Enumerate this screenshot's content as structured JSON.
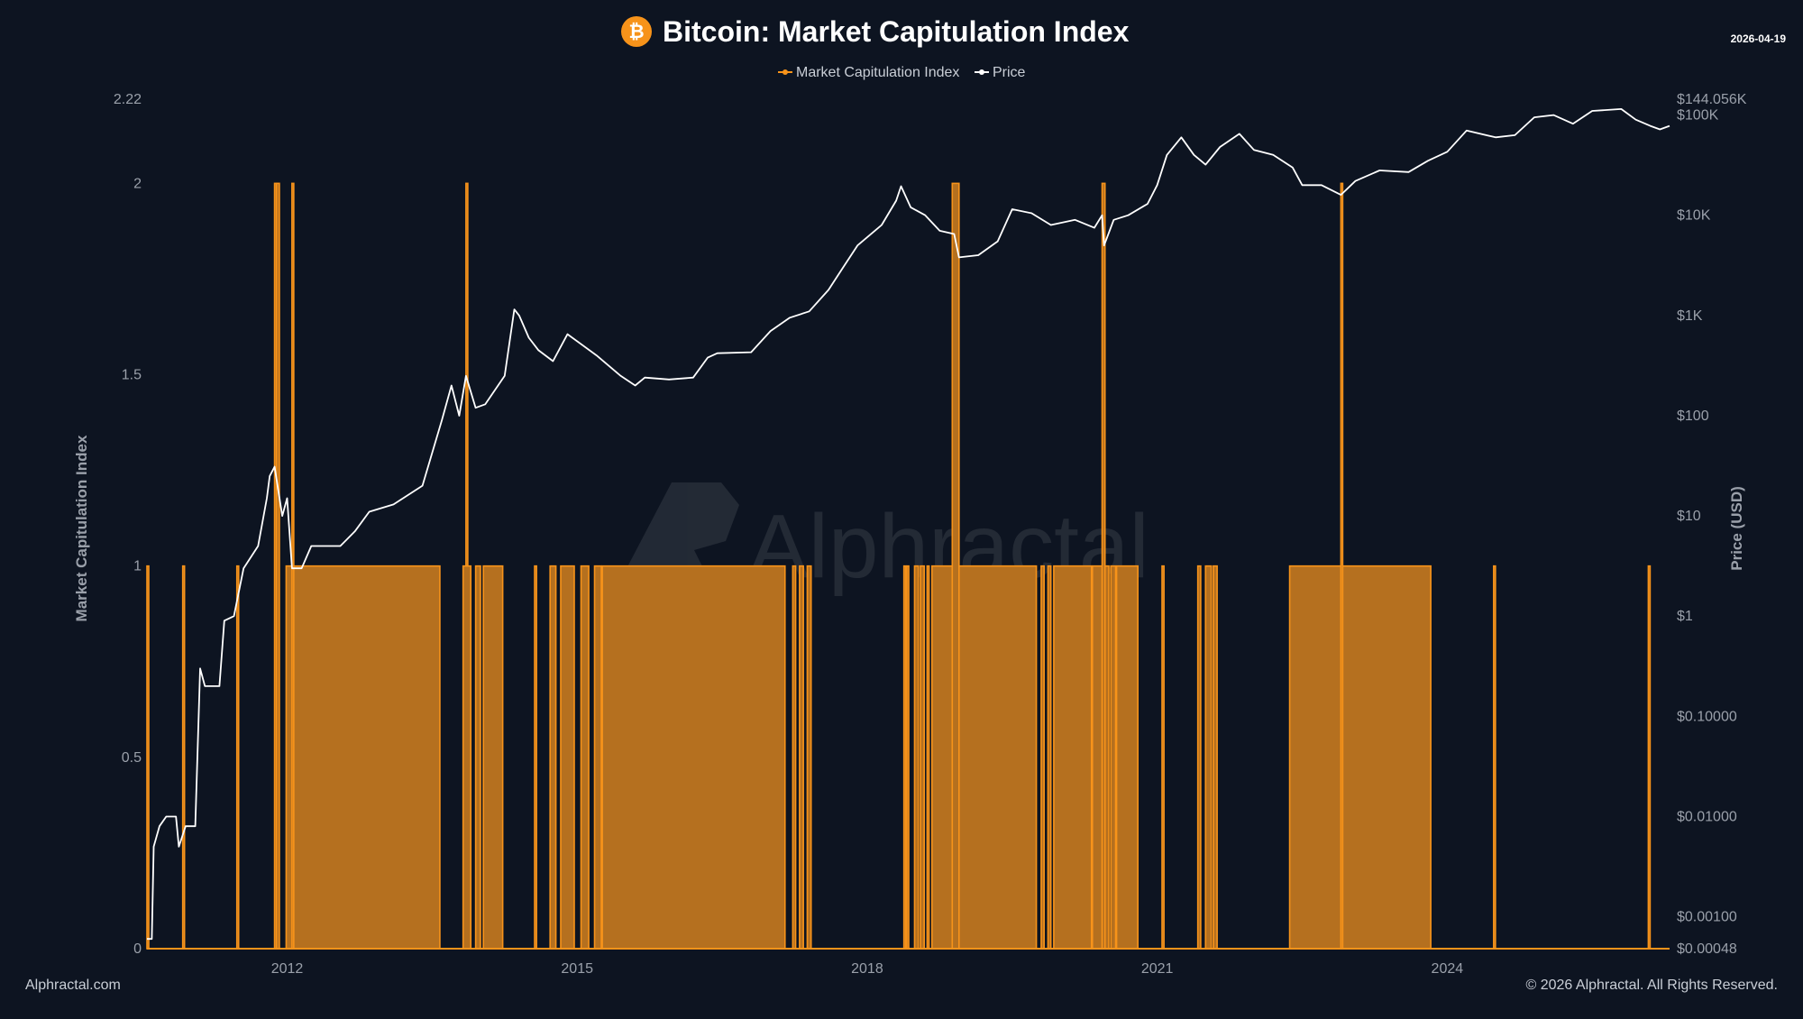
{
  "header": {
    "title": "Bitcoin: Market Capitulation Index",
    "date": "2026-04-19",
    "logo_icon": "bitcoin-icon"
  },
  "legend": {
    "items": [
      {
        "label": "Market Capitulation Index",
        "color": "#f7931a"
      },
      {
        "label": "Price",
        "color": "#ffffff"
      }
    ]
  },
  "footer": {
    "left": "Alphractal.com",
    "right": "© 2026 Alphractal. All Rights Reserved."
  },
  "watermark": "Alphractal",
  "colors": {
    "background": "#0d1421",
    "accent": "#f7931a",
    "fill": "#b5701f",
    "price": "#ffffff",
    "axis_text": "#9aa0aa"
  },
  "chart_data": {
    "type": "line",
    "ylabel": "Market Capitulation Index",
    "ylabel_right": "Price (USD)",
    "y_ticks": [
      "0",
      "0.5",
      "1",
      "1.5",
      "2",
      "2.22"
    ],
    "y_tick_values": [
      0,
      0.5,
      1,
      1.5,
      2,
      2.22
    ],
    "ylim": [
      0,
      2.22
    ],
    "y2_scale": "log",
    "y2_ticks": [
      "$0.00048",
      "$0.00100",
      "$0.01000",
      "$0.10000",
      "$1",
      "$10",
      "$100",
      "$1K",
      "$10K",
      "$100K",
      "$144.056K"
    ],
    "y2_tick_values": [
      0.00048,
      0.001,
      0.01,
      0.1,
      1,
      10,
      100,
      1000,
      10000,
      100000,
      144056
    ],
    "y2lim": [
      0.00048,
      144056
    ],
    "x_ticks": [
      "2012",
      "2015",
      "2018",
      "2021",
      "2024"
    ],
    "x_tick_values": [
      2012.0,
      2015.0,
      2018.0,
      2021.0,
      2024.0
    ],
    "xlim": [
      2010.55,
      2026.3
    ],
    "series": [
      {
        "name": "Market Capitulation Index",
        "color": "#f7931a",
        "style": "step-area",
        "segments": [
          {
            "start": 2010.55,
            "end": 2010.56,
            "value": 1
          },
          {
            "start": 2010.92,
            "end": 2010.93,
            "value": 1
          },
          {
            "start": 2011.48,
            "end": 2011.49,
            "value": 1
          },
          {
            "start": 2011.99,
            "end": 2013.58,
            "value": 1
          },
          {
            "start": 2011.87,
            "end": 2011.89,
            "value": 2
          },
          {
            "start": 2011.89,
            "end": 2011.92,
            "value": 2
          },
          {
            "start": 2012.05,
            "end": 2012.06,
            "value": 2
          },
          {
            "start": 2013.85,
            "end": 2013.86,
            "value": 2
          },
          {
            "start": 2013.82,
            "end": 2013.9,
            "value": 1
          },
          {
            "start": 2013.95,
            "end": 2014.0,
            "value": 1
          },
          {
            "start": 2014.03,
            "end": 2014.23,
            "value": 1
          },
          {
            "start": 2014.56,
            "end": 2014.58,
            "value": 1
          },
          {
            "start": 2014.72,
            "end": 2014.78,
            "value": 1
          },
          {
            "start": 2014.83,
            "end": 2014.97,
            "value": 1
          },
          {
            "start": 2015.04,
            "end": 2015.12,
            "value": 1
          },
          {
            "start": 2015.18,
            "end": 2015.25,
            "value": 1
          },
          {
            "start": 2015.26,
            "end": 2017.15,
            "value": 1
          },
          {
            "start": 2017.23,
            "end": 2017.26,
            "value": 1
          },
          {
            "start": 2017.3,
            "end": 2017.34,
            "value": 1
          },
          {
            "start": 2017.38,
            "end": 2017.42,
            "value": 1
          },
          {
            "start": 2018.38,
            "end": 2018.39,
            "value": 1
          },
          {
            "start": 2018.41,
            "end": 2018.43,
            "value": 1
          },
          {
            "start": 2018.49,
            "end": 2018.53,
            "value": 1
          },
          {
            "start": 2018.55,
            "end": 2018.59,
            "value": 1
          },
          {
            "start": 2018.62,
            "end": 2018.64,
            "value": 1
          },
          {
            "start": 2018.67,
            "end": 2019.75,
            "value": 1
          },
          {
            "start": 2018.88,
            "end": 2018.95,
            "value": 2
          },
          {
            "start": 2019.8,
            "end": 2019.83,
            "value": 1
          },
          {
            "start": 2019.87,
            "end": 2019.9,
            "value": 1
          },
          {
            "start": 2019.93,
            "end": 2020.32,
            "value": 1
          },
          {
            "start": 2020.33,
            "end": 2020.5,
            "value": 1
          },
          {
            "start": 2020.43,
            "end": 2020.46,
            "value": 2
          },
          {
            "start": 2020.52,
            "end": 2020.57,
            "value": 1
          },
          {
            "start": 2020.58,
            "end": 2020.8,
            "value": 1
          },
          {
            "start": 2021.05,
            "end": 2021.07,
            "value": 1
          },
          {
            "start": 2021.42,
            "end": 2021.45,
            "value": 1
          },
          {
            "start": 2021.5,
            "end": 2021.56,
            "value": 1
          },
          {
            "start": 2021.58,
            "end": 2021.62,
            "value": 1
          },
          {
            "start": 2022.37,
            "end": 2023.83,
            "value": 1
          },
          {
            "start": 2022.9,
            "end": 2022.91,
            "value": 2
          },
          {
            "start": 2024.48,
            "end": 2024.49,
            "value": 1
          },
          {
            "start": 2026.08,
            "end": 2026.09,
            "value": 1
          }
        ]
      },
      {
        "name": "Price",
        "color": "#ffffff",
        "style": "line",
        "points": [
          {
            "x": 2010.55,
            "y": 0.0006
          },
          {
            "x": 2010.6,
            "y": 0.0006
          },
          {
            "x": 2010.62,
            "y": 0.005
          },
          {
            "x": 2010.68,
            "y": 0.008
          },
          {
            "x": 2010.75,
            "y": 0.01
          },
          {
            "x": 2010.85,
            "y": 0.01
          },
          {
            "x": 2010.88,
            "y": 0.005
          },
          {
            "x": 2010.95,
            "y": 0.008
          },
          {
            "x": 2011.05,
            "y": 0.008
          },
          {
            "x": 2011.1,
            "y": 0.3
          },
          {
            "x": 2011.15,
            "y": 0.2
          },
          {
            "x": 2011.3,
            "y": 0.2
          },
          {
            "x": 2011.35,
            "y": 0.9
          },
          {
            "x": 2011.45,
            "y": 1.0
          },
          {
            "x": 2011.55,
            "y": 3
          },
          {
            "x": 2011.7,
            "y": 5
          },
          {
            "x": 2011.79,
            "y": 15
          },
          {
            "x": 2011.82,
            "y": 25
          },
          {
            "x": 2011.87,
            "y": 31
          },
          {
            "x": 2011.95,
            "y": 10
          },
          {
            "x": 2012.0,
            "y": 15
          },
          {
            "x": 2012.05,
            "y": 3
          },
          {
            "x": 2012.15,
            "y": 3
          },
          {
            "x": 2012.25,
            "y": 5
          },
          {
            "x": 2012.4,
            "y": 5
          },
          {
            "x": 2012.55,
            "y": 5
          },
          {
            "x": 2012.7,
            "y": 7
          },
          {
            "x": 2012.85,
            "y": 11
          },
          {
            "x": 2013.1,
            "y": 13
          },
          {
            "x": 2013.4,
            "y": 20
          },
          {
            "x": 2013.6,
            "y": 90
          },
          {
            "x": 2013.7,
            "y": 200
          },
          {
            "x": 2013.78,
            "y": 100
          },
          {
            "x": 2013.85,
            "y": 250
          },
          {
            "x": 2013.95,
            "y": 120
          },
          {
            "x": 2014.05,
            "y": 130
          },
          {
            "x": 2014.25,
            "y": 250
          },
          {
            "x": 2014.35,
            "y": 1150
          },
          {
            "x": 2014.4,
            "y": 1000
          },
          {
            "x": 2014.5,
            "y": 600
          },
          {
            "x": 2014.6,
            "y": 450
          },
          {
            "x": 2014.75,
            "y": 350
          },
          {
            "x": 2014.9,
            "y": 650
          },
          {
            "x": 2015.2,
            "y": 400
          },
          {
            "x": 2015.45,
            "y": 250
          },
          {
            "x": 2015.6,
            "y": 200
          },
          {
            "x": 2015.7,
            "y": 240
          },
          {
            "x": 2015.95,
            "y": 230
          },
          {
            "x": 2016.2,
            "y": 240
          },
          {
            "x": 2016.35,
            "y": 380
          },
          {
            "x": 2016.45,
            "y": 420
          },
          {
            "x": 2016.8,
            "y": 430
          },
          {
            "x": 2017.0,
            "y": 700
          },
          {
            "x": 2017.2,
            "y": 950
          },
          {
            "x": 2017.4,
            "y": 1100
          },
          {
            "x": 2017.6,
            "y": 1800
          },
          {
            "x": 2017.75,
            "y": 3000
          },
          {
            "x": 2017.9,
            "y": 5000
          },
          {
            "x": 2018.15,
            "y": 8000
          },
          {
            "x": 2018.3,
            "y": 14000
          },
          {
            "x": 2018.35,
            "y": 19500
          },
          {
            "x": 2018.45,
            "y": 12000
          },
          {
            "x": 2018.6,
            "y": 10000
          },
          {
            "x": 2018.75,
            "y": 7000
          },
          {
            "x": 2018.9,
            "y": 6500
          },
          {
            "x": 2018.95,
            "y": 3800
          },
          {
            "x": 2019.15,
            "y": 4000
          },
          {
            "x": 2019.35,
            "y": 5500
          },
          {
            "x": 2019.5,
            "y": 11500
          },
          {
            "x": 2019.7,
            "y": 10500
          },
          {
            "x": 2019.9,
            "y": 8000
          },
          {
            "x": 2020.15,
            "y": 9000
          },
          {
            "x": 2020.35,
            "y": 7500
          },
          {
            "x": 2020.43,
            "y": 10000
          },
          {
            "x": 2020.45,
            "y": 5000
          },
          {
            "x": 2020.55,
            "y": 9000
          },
          {
            "x": 2020.7,
            "y": 10000
          },
          {
            "x": 2020.9,
            "y": 13000
          },
          {
            "x": 2021.0,
            "y": 20000
          },
          {
            "x": 2021.1,
            "y": 40000
          },
          {
            "x": 2021.25,
            "y": 60000
          },
          {
            "x": 2021.38,
            "y": 40000
          },
          {
            "x": 2021.5,
            "y": 32000
          },
          {
            "x": 2021.65,
            "y": 48000
          },
          {
            "x": 2021.85,
            "y": 65000
          },
          {
            "x": 2022.0,
            "y": 45000
          },
          {
            "x": 2022.2,
            "y": 40000
          },
          {
            "x": 2022.4,
            "y": 30000
          },
          {
            "x": 2022.5,
            "y": 20000
          },
          {
            "x": 2022.7,
            "y": 20000
          },
          {
            "x": 2022.9,
            "y": 16000
          },
          {
            "x": 2023.05,
            "y": 22000
          },
          {
            "x": 2023.3,
            "y": 28000
          },
          {
            "x": 2023.6,
            "y": 27000
          },
          {
            "x": 2023.8,
            "y": 35000
          },
          {
            "x": 2024.0,
            "y": 43000
          },
          {
            "x": 2024.2,
            "y": 70000
          },
          {
            "x": 2024.5,
            "y": 60000
          },
          {
            "x": 2024.7,
            "y": 63000
          },
          {
            "x": 2024.9,
            "y": 95000
          },
          {
            "x": 2025.1,
            "y": 100000
          },
          {
            "x": 2025.3,
            "y": 82000
          },
          {
            "x": 2025.5,
            "y": 110000
          },
          {
            "x": 2025.8,
            "y": 115000
          },
          {
            "x": 2025.95,
            "y": 90000
          },
          {
            "x": 2026.1,
            "y": 78000
          },
          {
            "x": 2026.2,
            "y": 72000
          },
          {
            "x": 2026.3,
            "y": 78000
          }
        ]
      }
    ]
  }
}
